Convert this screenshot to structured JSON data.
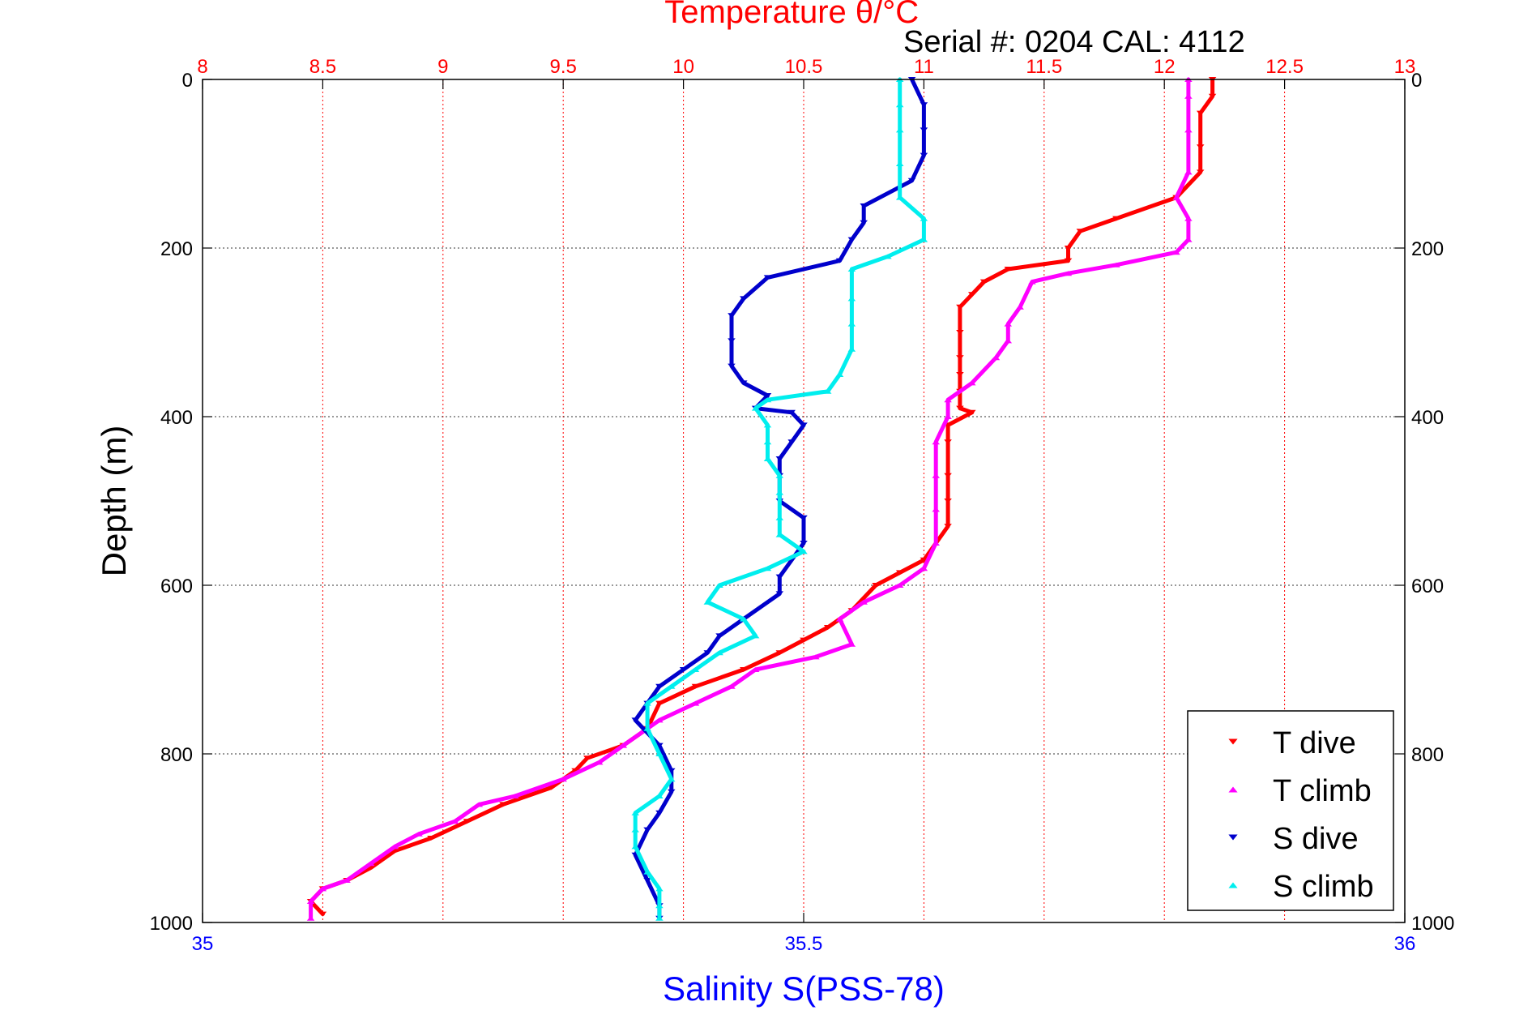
{
  "chart_data": {
    "type": "scatter",
    "title": "Temperature θ/°C",
    "subtitle": "Serial #: 0204  CAL: 4112",
    "top_axis": {
      "label": "Temperature θ/°C",
      "range": [
        8,
        13
      ],
      "ticks": [
        "8",
        "8.5",
        "9",
        "9.5",
        "10",
        "10.5",
        "11",
        "11.5",
        "12",
        "12.5",
        "13"
      ],
      "color": "#ff0000"
    },
    "bottom_axis": {
      "label": "Salinity S(PSS-78)",
      "range": [
        35,
        36
      ],
      "ticks": [
        "35",
        "35.5",
        "36"
      ],
      "color": "#0000ff"
    },
    "y_axis": {
      "label": "Depth (m)",
      "range": [
        0,
        1000
      ],
      "reversed": true,
      "ticks": [
        "0",
        "200",
        "400",
        "600",
        "800",
        "1000"
      ]
    },
    "grid": true,
    "legend": {
      "position": "bottom-right"
    },
    "series": [
      {
        "name": "T dive",
        "axis": "temperature",
        "color": "#ff0000",
        "marker": "triangle-down",
        "points": [
          [
            12.2,
            0
          ],
          [
            12.2,
            20
          ],
          [
            12.15,
            40
          ],
          [
            12.15,
            80
          ],
          [
            12.15,
            110
          ],
          [
            12.05,
            140
          ],
          [
            11.8,
            165
          ],
          [
            11.65,
            180
          ],
          [
            11.6,
            200
          ],
          [
            11.6,
            215
          ],
          [
            11.35,
            225
          ],
          [
            11.25,
            240
          ],
          [
            11.2,
            255
          ],
          [
            11.15,
            270
          ],
          [
            11.15,
            300
          ],
          [
            11.15,
            330
          ],
          [
            11.15,
            350
          ],
          [
            11.15,
            370
          ],
          [
            11.15,
            390
          ],
          [
            11.2,
            395
          ],
          [
            11.1,
            410
          ],
          [
            11.1,
            430
          ],
          [
            11.1,
            470
          ],
          [
            11.1,
            500
          ],
          [
            11.1,
            530
          ],
          [
            11.0,
            570
          ],
          [
            10.9,
            585
          ],
          [
            10.8,
            600
          ],
          [
            10.7,
            630
          ],
          [
            10.6,
            650
          ],
          [
            10.5,
            665
          ],
          [
            10.4,
            680
          ],
          [
            10.25,
            700
          ],
          [
            10.05,
            720
          ],
          [
            9.9,
            740
          ],
          [
            9.85,
            770
          ],
          [
            9.75,
            790
          ],
          [
            9.6,
            805
          ],
          [
            9.55,
            820
          ],
          [
            9.45,
            840
          ],
          [
            9.25,
            860
          ],
          [
            9.1,
            880
          ],
          [
            8.95,
            900
          ],
          [
            8.8,
            915
          ],
          [
            8.7,
            935
          ],
          [
            8.6,
            950
          ],
          [
            8.5,
            960
          ],
          [
            8.45,
            975
          ],
          [
            8.5,
            990
          ]
        ]
      },
      {
        "name": "T climb",
        "axis": "temperature",
        "color": "#ff00ff",
        "marker": "triangle-up",
        "points": [
          [
            12.1,
            0
          ],
          [
            12.1,
            20
          ],
          [
            12.1,
            60
          ],
          [
            12.1,
            110
          ],
          [
            12.05,
            140
          ],
          [
            12.1,
            165
          ],
          [
            12.1,
            190
          ],
          [
            12.05,
            205
          ],
          [
            11.8,
            220
          ],
          [
            11.6,
            230
          ],
          [
            11.45,
            240
          ],
          [
            11.4,
            270
          ],
          [
            11.35,
            290
          ],
          [
            11.35,
            310
          ],
          [
            11.3,
            330
          ],
          [
            11.2,
            360
          ],
          [
            11.1,
            380
          ],
          [
            11.1,
            400
          ],
          [
            11.05,
            430
          ],
          [
            11.05,
            470
          ],
          [
            11.05,
            510
          ],
          [
            11.05,
            550
          ],
          [
            11.0,
            580
          ],
          [
            10.9,
            600
          ],
          [
            10.75,
            620
          ],
          [
            10.65,
            640
          ],
          [
            10.7,
            670
          ],
          [
            10.55,
            685
          ],
          [
            10.3,
            700
          ],
          [
            10.2,
            720
          ],
          [
            10.05,
            740
          ],
          [
            9.9,
            760
          ],
          [
            9.75,
            790
          ],
          [
            9.65,
            810
          ],
          [
            9.5,
            830
          ],
          [
            9.3,
            850
          ],
          [
            9.15,
            860
          ],
          [
            9.05,
            880
          ],
          [
            8.9,
            895
          ],
          [
            8.8,
            910
          ],
          [
            8.7,
            930
          ],
          [
            8.6,
            950
          ],
          [
            8.5,
            960
          ],
          [
            8.45,
            975
          ],
          [
            8.45,
            995
          ]
        ]
      },
      {
        "name": "S dive",
        "axis": "salinity",
        "color": "#0000cc",
        "marker": "triangle-down",
        "points": [
          [
            35.59,
            0
          ],
          [
            35.6,
            30
          ],
          [
            35.6,
            60
          ],
          [
            35.6,
            90
          ],
          [
            35.59,
            120
          ],
          [
            35.55,
            150
          ],
          [
            35.55,
            170
          ],
          [
            35.54,
            190
          ],
          [
            35.53,
            215
          ],
          [
            35.47,
            235
          ],
          [
            35.45,
            260
          ],
          [
            35.44,
            280
          ],
          [
            35.44,
            310
          ],
          [
            35.44,
            340
          ],
          [
            35.45,
            360
          ],
          [
            35.47,
            375
          ],
          [
            35.46,
            390
          ],
          [
            35.49,
            395
          ],
          [
            35.5,
            410
          ],
          [
            35.49,
            430
          ],
          [
            35.48,
            450
          ],
          [
            35.48,
            470
          ],
          [
            35.48,
            500
          ],
          [
            35.5,
            520
          ],
          [
            35.5,
            550
          ],
          [
            35.49,
            570
          ],
          [
            35.48,
            590
          ],
          [
            35.48,
            610
          ],
          [
            35.45,
            640
          ],
          [
            35.43,
            660
          ],
          [
            35.42,
            680
          ],
          [
            35.4,
            700
          ],
          [
            35.38,
            720
          ],
          [
            35.37,
            740
          ],
          [
            35.36,
            760
          ],
          [
            35.38,
            790
          ],
          [
            35.39,
            820
          ],
          [
            35.39,
            845
          ],
          [
            35.38,
            870
          ],
          [
            35.37,
            890
          ],
          [
            35.36,
            920
          ],
          [
            35.37,
            950
          ],
          [
            35.38,
            980
          ],
          [
            35.38,
            995
          ]
        ]
      },
      {
        "name": "S climb",
        "axis": "salinity",
        "color": "#00eeee",
        "marker": "triangle-up",
        "points": [
          [
            35.58,
            0
          ],
          [
            35.58,
            30
          ],
          [
            35.58,
            60
          ],
          [
            35.58,
            100
          ],
          [
            35.58,
            140
          ],
          [
            35.6,
            165
          ],
          [
            35.6,
            190
          ],
          [
            35.57,
            210
          ],
          [
            35.54,
            225
          ],
          [
            35.54,
            260
          ],
          [
            35.54,
            290
          ],
          [
            35.54,
            320
          ],
          [
            35.53,
            350
          ],
          [
            35.52,
            370
          ],
          [
            35.47,
            380
          ],
          [
            35.46,
            390
          ],
          [
            35.47,
            410
          ],
          [
            35.47,
            430
          ],
          [
            35.47,
            450
          ],
          [
            35.48,
            470
          ],
          [
            35.48,
            490
          ],
          [
            35.48,
            520
          ],
          [
            35.48,
            540
          ],
          [
            35.5,
            560
          ],
          [
            35.47,
            580
          ],
          [
            35.43,
            600
          ],
          [
            35.42,
            620
          ],
          [
            35.45,
            640
          ],
          [
            35.46,
            660
          ],
          [
            35.43,
            680
          ],
          [
            35.41,
            700
          ],
          [
            35.39,
            720
          ],
          [
            35.37,
            740
          ],
          [
            35.37,
            770
          ],
          [
            35.38,
            800
          ],
          [
            35.39,
            830
          ],
          [
            35.38,
            850
          ],
          [
            35.36,
            870
          ],
          [
            35.36,
            890
          ],
          [
            35.36,
            910
          ],
          [
            35.37,
            940
          ],
          [
            35.38,
            960
          ],
          [
            35.38,
            980
          ],
          [
            35.38,
            995
          ]
        ]
      }
    ]
  }
}
